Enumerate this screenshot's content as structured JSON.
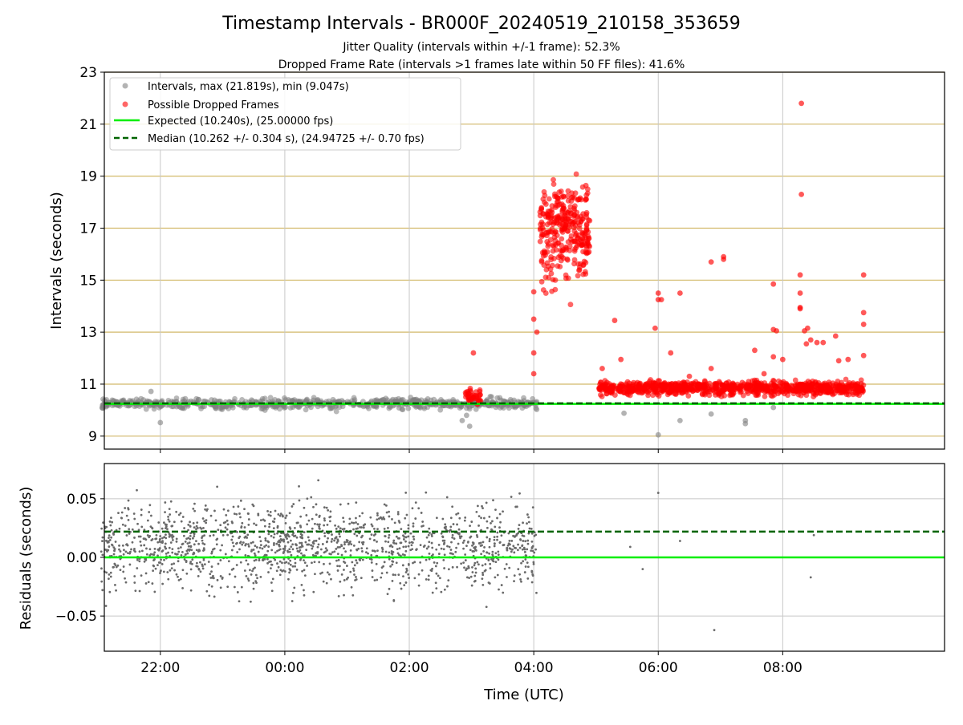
{
  "header": {
    "title": "Timestamp Intervals - BR000F_20240519_210158_353659",
    "subtitle1": "Jitter Quality (intervals within +/-1 frame): 52.3%",
    "subtitle2": "Dropped Frame Rate (intervals >1 frames late within 50 FF files): 41.6%"
  },
  "colors": {
    "intervals": "#808080",
    "dropped": "#ff0000",
    "expected": "#00ee00",
    "median": "#006400",
    "hgrid": "#d2b96a",
    "vgrid": "#c8c8c8"
  },
  "chart_data": [
    {
      "type": "scatter",
      "panel": "main",
      "xlabel": "",
      "ylabel": "Intervals (seconds)",
      "x_unit": "hours since 00:00 UTC",
      "xlim": [
        -2.9,
        10.6
      ],
      "ylim": [
        8.5,
        23
      ],
      "yticks": [
        9,
        11,
        13,
        15,
        17,
        19,
        21,
        23
      ],
      "ytick_labels": [
        "9",
        "11",
        "13",
        "15",
        "17",
        "19",
        "21",
        "23"
      ],
      "xticks": [
        -2,
        0,
        2,
        4,
        6,
        8
      ],
      "grid": "horizontal gold and vertical gray",
      "legend_position": "upper-left",
      "legend": [
        "Intervals, max (21.819s), min (9.047s)",
        "Possible Dropped Frames",
        "Expected (10.240s), (25.00000 fps)",
        "Median (10.262 +/- 0.304 s), (24.94725 +/- 0.70 fps)"
      ],
      "expected_line": 10.24,
      "median_line": 10.262,
      "series": [
        {
          "name": "Intervals",
          "kind": "gray-points",
          "x_range": [
            -2.95,
            4.05
          ],
          "center": 10.25,
          "spread": 0.14,
          "n": 700,
          "outliers": [
            [
              -2.0,
              9.52
            ],
            [
              -2.15,
              10.72
            ],
            [
              2.85,
              9.6
            ],
            [
              2.97,
              9.38
            ],
            [
              2.92,
              9.8
            ],
            [
              5.45,
              9.88
            ],
            [
              6.0,
              9.05
            ],
            [
              6.35,
              9.6
            ],
            [
              6.85,
              9.85
            ],
            [
              7.4,
              9.48
            ],
            [
              7.4,
              9.6
            ],
            [
              7.85,
              10.1
            ],
            [
              3.3,
              10.52
            ]
          ]
        },
        {
          "name": "Possible Dropped Frames",
          "kind": "red-points",
          "clusters": [
            {
              "x_range": [
                2.9,
                3.15
              ],
              "center": 10.55,
              "spread": 0.22,
              "n": 40
            },
            {
              "x_range": [
                4.1,
                4.9
              ],
              "center": 17.0,
              "spread": 1.3,
              "n": 320
            },
            {
              "x_range": [
                5.05,
                9.3
              ],
              "center": 10.85,
              "spread": 0.18,
              "n": 900
            }
          ],
          "outliers": [
            [
              8.3,
              21.8
            ],
            [
              8.3,
              18.3
            ],
            [
              4.0,
              13.5
            ],
            [
              4.0,
              12.2
            ],
            [
              4.0,
              14.55
            ],
            [
              4.0,
              11.4
            ],
            [
              4.05,
              13.0
            ],
            [
              3.03,
              12.2
            ],
            [
              5.3,
              13.45
            ],
            [
              5.95,
              13.15
            ],
            [
              6.0,
              14.5
            ],
            [
              6.0,
              14.25
            ],
            [
              6.05,
              14.25
            ],
            [
              6.35,
              14.5
            ],
            [
              6.2,
              12.2
            ],
            [
              6.85,
              15.7
            ],
            [
              7.05,
              15.8
            ],
            [
              7.05,
              15.9
            ],
            [
              7.55,
              12.3
            ],
            [
              7.85,
              14.85
            ],
            [
              7.85,
              13.1
            ],
            [
              7.9,
              13.05
            ],
            [
              7.85,
              12.05
            ],
            [
              8.28,
              15.2
            ],
            [
              8.28,
              14.5
            ],
            [
              8.28,
              13.95
            ],
            [
              8.28,
              13.9
            ],
            [
              8.35,
              13.05
            ],
            [
              8.38,
              12.55
            ],
            [
              8.45,
              12.7
            ],
            [
              8.55,
              12.6
            ],
            [
              8.4,
              13.15
            ],
            [
              8.65,
              12.6
            ],
            [
              8.85,
              12.85
            ],
            [
              9.3,
              15.2
            ],
            [
              9.3,
              13.75
            ],
            [
              9.3,
              13.3
            ],
            [
              9.3,
              12.1
            ],
            [
              8.0,
              11.95
            ],
            [
              7.7,
              11.4
            ],
            [
              9.05,
              11.95
            ],
            [
              8.9,
              11.9
            ],
            [
              5.4,
              11.95
            ],
            [
              5.1,
              11.6
            ],
            [
              6.5,
              11.3
            ],
            [
              6.85,
              11.6
            ]
          ]
        }
      ]
    },
    {
      "type": "scatter",
      "panel": "residuals",
      "xlabel": "Time (UTC)",
      "ylabel": "Residuals (seconds)",
      "xlim": [
        -2.9,
        10.6
      ],
      "ylim": [
        -0.08,
        0.08
      ],
      "yticks": [
        -0.05,
        0.0,
        0.05
      ],
      "ytick_labels": [
        "−0.05",
        "0.00",
        "0.05"
      ],
      "xticks": [
        -2,
        0,
        2,
        4,
        6,
        8
      ],
      "xtick_labels": [
        "22:00",
        "00:00",
        "02:00",
        "04:00",
        "06:00",
        "08:00"
      ],
      "zero_line": 0.0,
      "median_offset": 0.022,
      "series": [
        {
          "name": "Residuals",
          "kind": "small-gray-points",
          "x_range": [
            -2.95,
            4.05
          ],
          "center": 0.01,
          "spread": 0.025,
          "n": 1500,
          "outliers": [
            [
              5.55,
              0.009
            ],
            [
              5.75,
              -0.01
            ],
            [
              6.0,
              0.055
            ],
            [
              6.35,
              0.014
            ],
            [
              6.9,
              -0.062
            ],
            [
              8.45,
              -0.017
            ],
            [
              8.5,
              0.019
            ]
          ]
        }
      ]
    }
  ]
}
